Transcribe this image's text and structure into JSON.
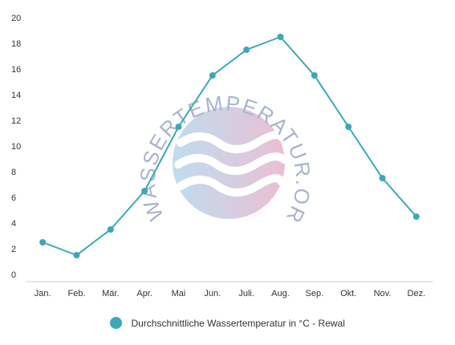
{
  "chart_data": {
    "type": "line",
    "categories": [
      "Jan.",
      "Feb.",
      "Mär.",
      "Apr.",
      "Mai",
      "Jun.",
      "Juli.",
      "Aug.",
      "Sep.",
      "Okt.",
      "Nov.",
      "Dez."
    ],
    "series": [
      {
        "name": "Durchschnittliche Wassertemperatur in °C - Rewal",
        "values": [
          2.5,
          1.5,
          3.5,
          6.5,
          11.5,
          15.5,
          17.5,
          18.5,
          15.5,
          11.5,
          7.5,
          4.5
        ]
      }
    ],
    "ylim": [
      0,
      20
    ],
    "yticks": [
      0,
      2,
      4,
      6,
      8,
      10,
      12,
      14,
      16,
      18,
      20
    ],
    "grid": false,
    "legend_position": "bottom-center",
    "colors": {
      "series": "#3aa9b5",
      "axis": "#cccccc",
      "text": "#333333"
    }
  },
  "watermark": {
    "text": "WASSERTEMPERATUR.ORG",
    "icon": "waves-logo-icon"
  }
}
